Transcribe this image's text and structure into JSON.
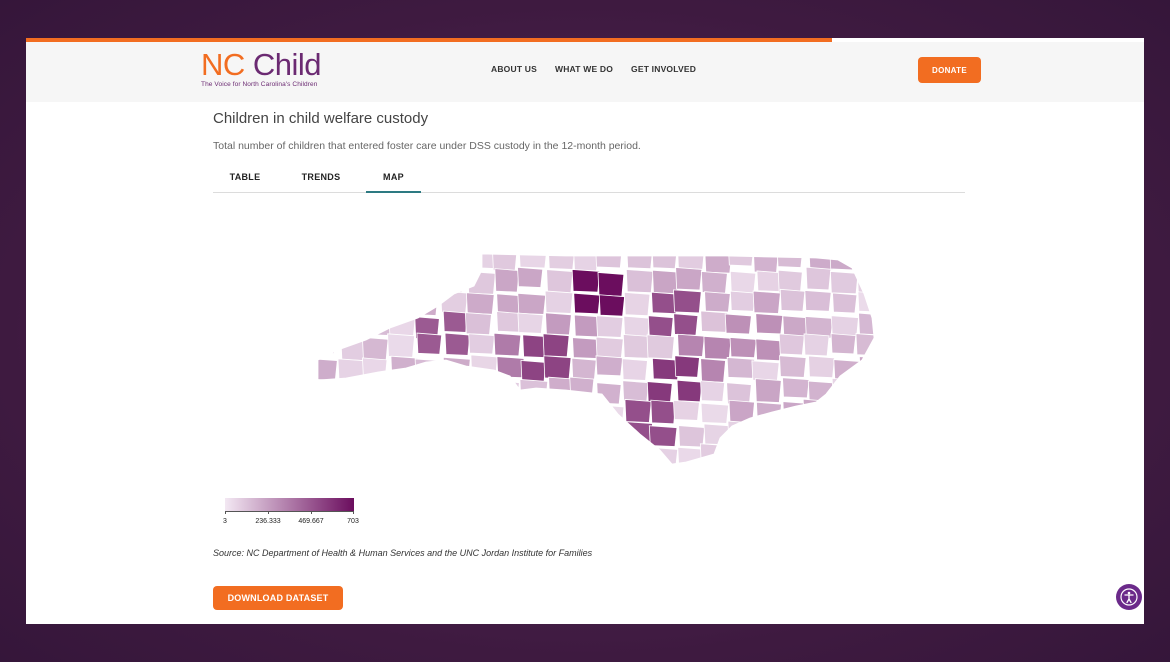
{
  "header": {
    "logo_nc": "NC",
    "logo_child": "Child",
    "tagline": "The Voice for North Carolina's Children",
    "nav": [
      "ABOUT US",
      "WHAT WE DO",
      "GET INVOLVED"
    ],
    "donate_label": "DONATE"
  },
  "main": {
    "title": "Children in child welfare custody",
    "subtitle": "Total number of children that entered foster care under DSS custody in the 12-month period.",
    "tabs": [
      {
        "label": "TABLE",
        "active": false
      },
      {
        "label": "TRENDS",
        "active": false
      },
      {
        "label": "MAP",
        "active": true
      }
    ],
    "source": "Source: NC Department of Health & Human Services and the UNC Jordan Institute for Families",
    "download_label": "DOWNLOAD DATASET"
  },
  "map": {
    "legend": {
      "min": 3,
      "max": 703,
      "tick_labels": [
        "3",
        "236.333",
        "469.667",
        "703"
      ],
      "color_low": "#f3e8f3",
      "color_high": "#6b0d5e"
    }
  },
  "colors": {
    "accent_orange": "#f26d21",
    "brand_purple": "#6b2a72",
    "tab_active_underline": "#2d7a82"
  },
  "icons": {
    "accessibility": "accessibility-icon"
  }
}
